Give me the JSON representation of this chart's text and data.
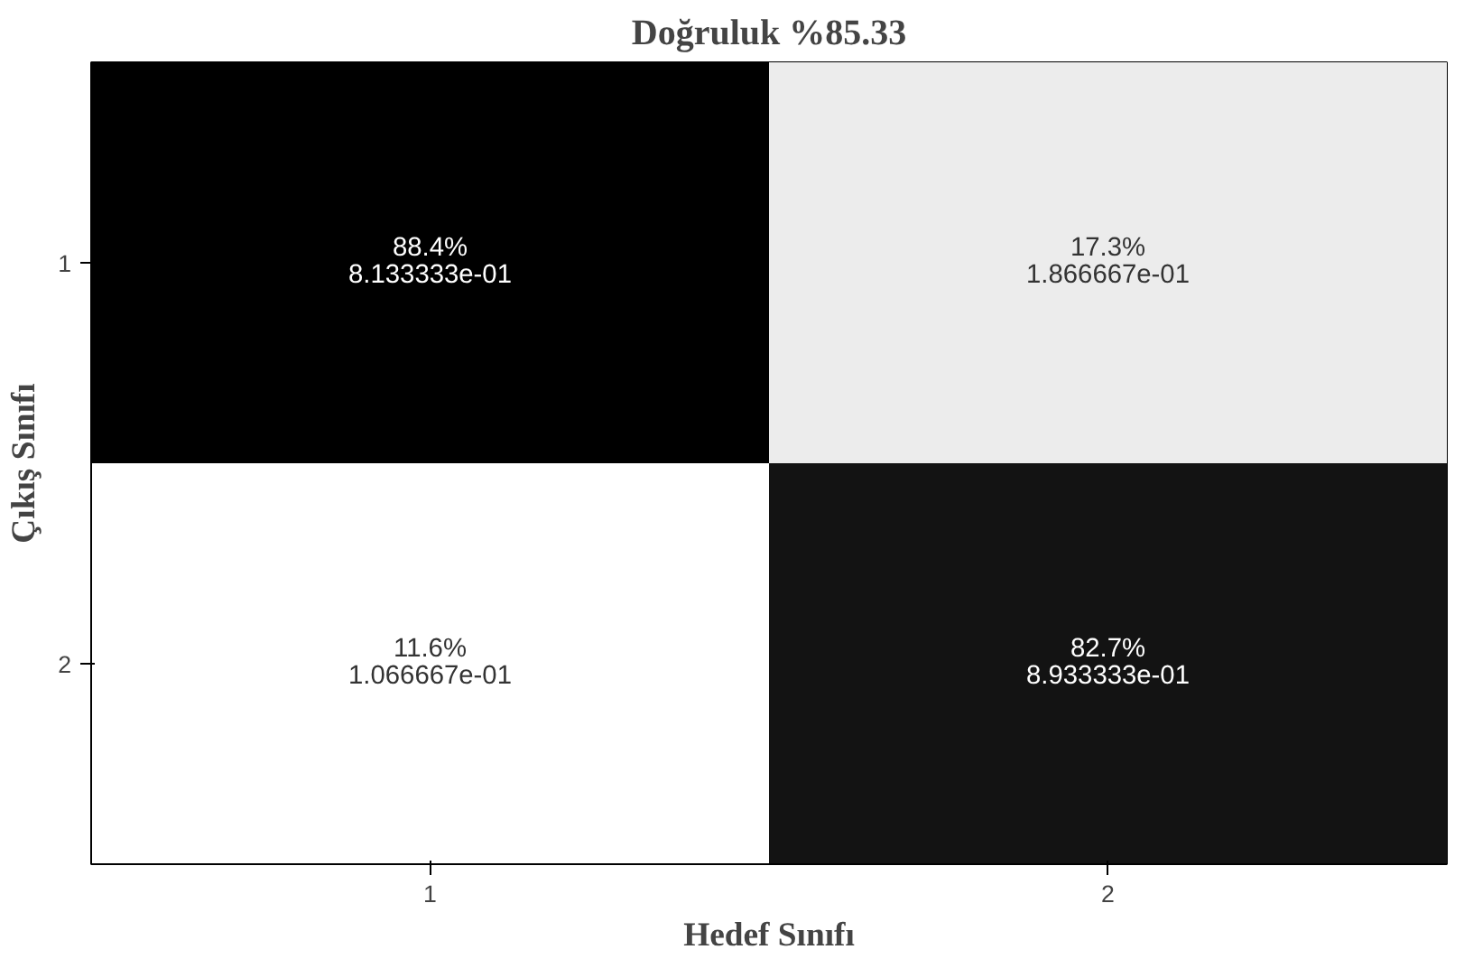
{
  "chart_data": {
    "type": "heatmap",
    "title": "Doğruluk %85.33",
    "xlabel": "Hedef Sınıfı",
    "ylabel": "Çıkış Sınıfı",
    "categories": [
      "1",
      "2"
    ],
    "y_categories": [
      "1",
      "2"
    ],
    "cells": [
      [
        88.4,
        17.3
      ],
      [
        11.6,
        82.7
      ]
    ],
    "cell_labels": [
      [
        "88.4%",
        "17.3%"
      ],
      [
        "11.6%",
        "82.7%"
      ]
    ],
    "annotations": [
      "8.133333e-01",
      "1.866667e-01",
      "1.066667e-01",
      "8.933333e-01"
    ]
  }
}
